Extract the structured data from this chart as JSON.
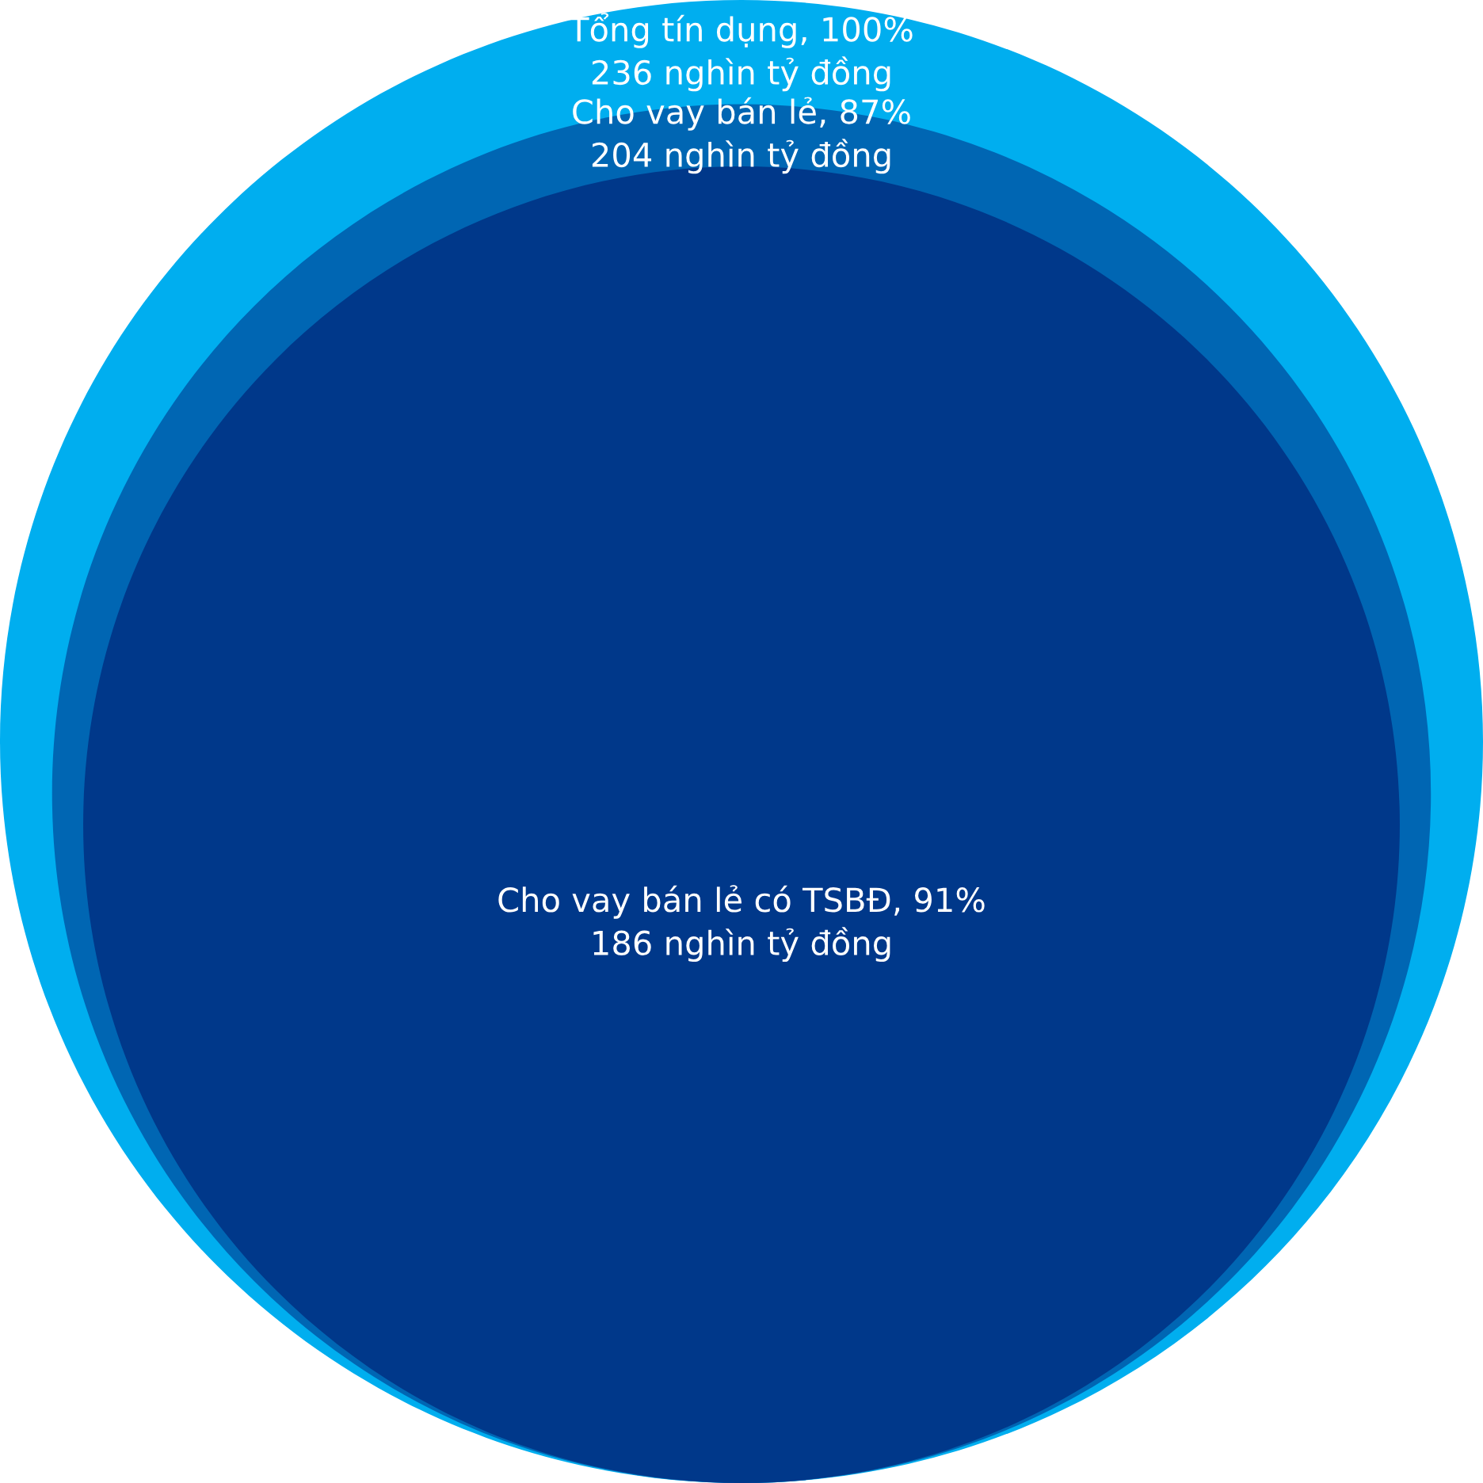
{
  "chart_data": {
    "type": "other",
    "categories": [
      "Tổng tín dụng, 100%",
      "Cho vay bán lẻ, 87%",
      "Cho vay bán lẻ có TSBĐ, 91%"
    ],
    "values": [
      236,
      204,
      186
    ],
    "value_labels": [
      "236 nghìn tỷ đồng",
      "204 nghìn tỷ đồng",
      "186 nghìn tỷ đồng"
    ],
    "colors": [
      "#00aeef",
      "#0066b3",
      "#00388a"
    ]
  }
}
